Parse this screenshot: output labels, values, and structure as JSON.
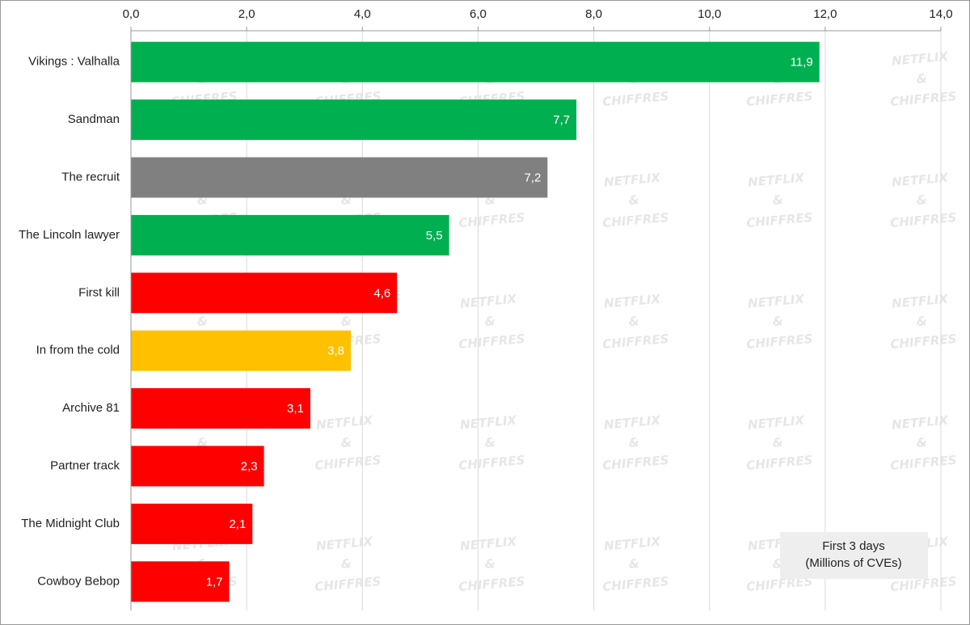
{
  "chart_data": {
    "type": "bar",
    "orientation": "horizontal",
    "categories": [
      "Vikings : Valhalla",
      "Sandman",
      "The recruit",
      "The Lincoln lawyer",
      "First kill",
      "In from the cold",
      "Archive 81",
      "Partner track",
      "The Midnight Club",
      "Cowboy Bebop"
    ],
    "values": [
      11.9,
      7.7,
      7.2,
      5.5,
      4.6,
      3.8,
      3.1,
      2.3,
      2.1,
      1.7
    ],
    "value_labels": [
      "11,9",
      "7,7",
      "7,2",
      "5,5",
      "4,6",
      "3,8",
      "3,1",
      "2,3",
      "2,1",
      "1,7"
    ],
    "colors": [
      "#00b050",
      "#00b050",
      "#808080",
      "#00b050",
      "#ff0000",
      "#ffc000",
      "#ff0000",
      "#ff0000",
      "#ff0000",
      "#ff0000"
    ],
    "xlim": [
      0,
      14
    ],
    "xticks": [
      {
        "value": 0,
        "label": "0,0"
      },
      {
        "value": 2,
        "label": "2,0"
      },
      {
        "value": 4,
        "label": "4,0"
      },
      {
        "value": 6,
        "label": "6,0"
      },
      {
        "value": 8,
        "label": "8,0"
      },
      {
        "value": 10,
        "label": "10,0"
      },
      {
        "value": 12,
        "label": "12,0"
      },
      {
        "value": 14,
        "label": "14,0"
      }
    ],
    "grid": true,
    "annotation": [
      "First 3 days",
      "(Millions of CVEs)"
    ],
    "watermark": [
      "NETFLIX",
      "&",
      "CHIFFRES"
    ]
  }
}
